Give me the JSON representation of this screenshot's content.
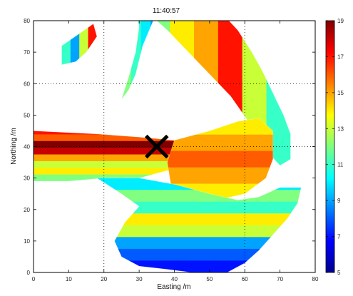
{
  "chart_data": {
    "type": "heatmap",
    "title": "11:40:57",
    "xlabel": "Easting /m",
    "ylabel": "Northing /m",
    "xlim": [
      0,
      80
    ],
    "ylim": [
      0,
      80
    ],
    "x_ticks": [
      "0",
      "10",
      "20",
      "30",
      "40",
      "50",
      "60",
      "70",
      "80"
    ],
    "y_ticks": [
      "0",
      "10",
      "20",
      "30",
      "40",
      "50",
      "60",
      "70",
      "80"
    ],
    "grid_x": [
      20,
      60
    ],
    "grid_y": [
      40,
      60
    ],
    "grid_style": "dotted",
    "colorbar": {
      "min": 5,
      "max": 19,
      "ticks": [
        "5",
        "7",
        "9",
        "11",
        "13",
        "15",
        "17",
        "19"
      ],
      "colormap": "jet"
    },
    "marker": {
      "type": "X",
      "x": 35,
      "y": 40,
      "color": "#000000"
    },
    "regions": [
      {
        "name": "north-island",
        "polygon": [
          [
            8,
            72
          ],
          [
            17,
            79
          ],
          [
            18,
            75
          ],
          [
            15,
            70
          ],
          [
            12,
            67
          ],
          [
            8,
            66
          ]
        ],
        "values": [
          11,
          9,
          13,
          17
        ]
      },
      {
        "name": "upper-left-vein",
        "polygon": [
          [
            29,
            88
          ],
          [
            34,
            90
          ],
          [
            36,
            86
          ],
          [
            34,
            80
          ],
          [
            31,
            72
          ],
          [
            29,
            63
          ],
          [
            27,
            58
          ],
          [
            25,
            55
          ],
          [
            27,
            62
          ],
          [
            29,
            70
          ],
          [
            30,
            78
          ]
        ],
        "values": [
          12,
          11,
          10,
          9
        ]
      },
      {
        "name": "top-arc",
        "polygon": [
          [
            25,
            89
          ],
          [
            36,
            90
          ],
          [
            45,
            87
          ],
          [
            53,
            83
          ],
          [
            58,
            77
          ],
          [
            62,
            70
          ],
          [
            65,
            64
          ],
          [
            68,
            57
          ],
          [
            71,
            50
          ],
          [
            73,
            44
          ],
          [
            73,
            36
          ],
          [
            70,
            34
          ],
          [
            65,
            40
          ],
          [
            61,
            48
          ],
          [
            56,
            56
          ],
          [
            50,
            63
          ],
          [
            44,
            70
          ],
          [
            38,
            77
          ],
          [
            31,
            84
          ]
        ],
        "values": [
          10,
          12,
          14,
          15,
          17,
          13,
          11
        ]
      },
      {
        "name": "west-arm",
        "polygon": [
          [
            0,
            45
          ],
          [
            18,
            44
          ],
          [
            30,
            43
          ],
          [
            40,
            42
          ],
          [
            50,
            42
          ],
          [
            56,
            43
          ],
          [
            62,
            45
          ],
          [
            66,
            46
          ],
          [
            64,
            41
          ],
          [
            58,
            39
          ],
          [
            50,
            36
          ],
          [
            40,
            33
          ],
          [
            30,
            30
          ],
          [
            20,
            30
          ],
          [
            10,
            29
          ],
          [
            0,
            29
          ]
        ],
        "values": [
          17,
          16,
          19,
          18,
          15,
          13,
          14,
          12
        ]
      },
      {
        "name": "east-block",
        "polygon": [
          [
            40,
            42
          ],
          [
            50,
            45
          ],
          [
            58,
            48
          ],
          [
            64,
            49
          ],
          [
            68,
            45
          ],
          [
            68,
            36
          ],
          [
            66,
            30
          ],
          [
            60,
            25
          ],
          [
            52,
            23
          ],
          [
            44,
            23
          ],
          [
            39,
            28
          ],
          [
            38,
            35
          ]
        ],
        "values": [
          14,
          15,
          16,
          15,
          14
        ]
      },
      {
        "name": "south-arm",
        "polygon": [
          [
            18,
            30
          ],
          [
            30,
            30
          ],
          [
            40,
            28
          ],
          [
            50,
            25
          ],
          [
            58,
            23
          ],
          [
            64,
            24
          ],
          [
            70,
            27
          ],
          [
            76,
            27
          ],
          [
            75,
            22
          ],
          [
            72,
            17
          ],
          [
            68,
            12
          ],
          [
            64,
            7
          ],
          [
            60,
            3
          ],
          [
            55,
            0
          ],
          [
            45,
            0
          ],
          [
            38,
            1
          ],
          [
            30,
            2
          ],
          [
            25,
            5
          ],
          [
            23,
            10
          ],
          [
            26,
            16
          ],
          [
            30,
            21
          ],
          [
            25,
            25
          ]
        ],
        "values": [
          10,
          12,
          11,
          14,
          13,
          9,
          8,
          7
        ]
      }
    ]
  }
}
